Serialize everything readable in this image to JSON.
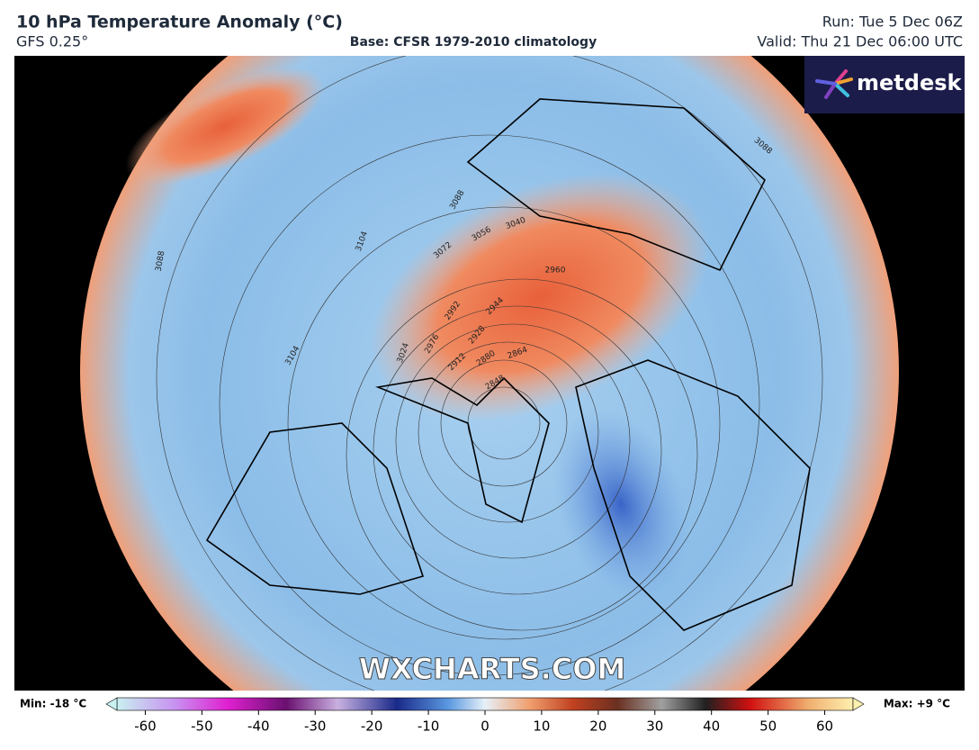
{
  "header": {
    "title": "10 hPa Temperature Anomaly (°C)",
    "model": "GFS 0.25°",
    "base": "Base: CFSR 1979-2010 climatology",
    "run": "Run: Tue 5 Dec 06Z",
    "valid": "Valid: Thu 21 Dec 06:00 UTC"
  },
  "logo": "metdesk",
  "watermark": "WXCHARTS.COM",
  "contour_labels": [
    3088,
    3088,
    3088,
    3104,
    3104,
    3072,
    3056,
    3040,
    2960,
    2992,
    2944,
    2976,
    2928,
    2912,
    2880,
    2864,
    2848,
    3024
  ],
  "colorbar": {
    "min_label": "Min: -18 °C",
    "max_label": "Max: +9 °C",
    "lim": [
      -65,
      65
    ],
    "ticks": [
      -60,
      -50,
      -40,
      -30,
      -20,
      -10,
      0,
      10,
      20,
      30,
      40,
      50,
      60
    ]
  }
}
